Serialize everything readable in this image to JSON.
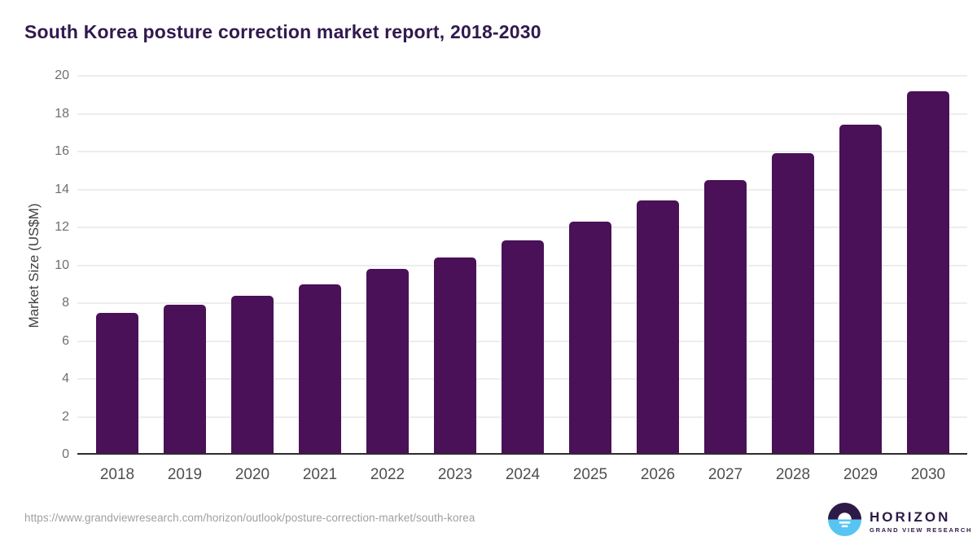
{
  "header": {
    "title": "South Korea posture correction market report, 2018-2030"
  },
  "chart_data": {
    "type": "bar",
    "title": "South Korea posture correction market report, 2018-2030",
    "categories": [
      "2018",
      "2019",
      "2020",
      "2021",
      "2022",
      "2023",
      "2024",
      "2025",
      "2026",
      "2027",
      "2028",
      "2029",
      "2030"
    ],
    "values": [
      7.5,
      7.9,
      8.4,
      9.0,
      9.8,
      10.4,
      11.3,
      12.3,
      13.4,
      14.5,
      15.9,
      17.4,
      19.2
    ],
    "xlabel": "",
    "ylabel": "Market Size (US$M)",
    "ylim": [
      0,
      20
    ],
    "ytick_step": 2,
    "grid": "horizontal-only",
    "legend": "none",
    "bar_color": "#4a1158",
    "title_color": "#31194e",
    "axis_label_color": "#6f6f6f"
  },
  "footer": {
    "source_url": "https://www.grandviewresearch.com/horizon/outlook/posture-correction-market/south-korea",
    "logo": {
      "name": "HORIZON",
      "subtitle": "GRAND VIEW RESEARCH",
      "icon": "sunrise-horizon-icon",
      "purple": "#2e1a47",
      "blue": "#56c5f2"
    }
  }
}
